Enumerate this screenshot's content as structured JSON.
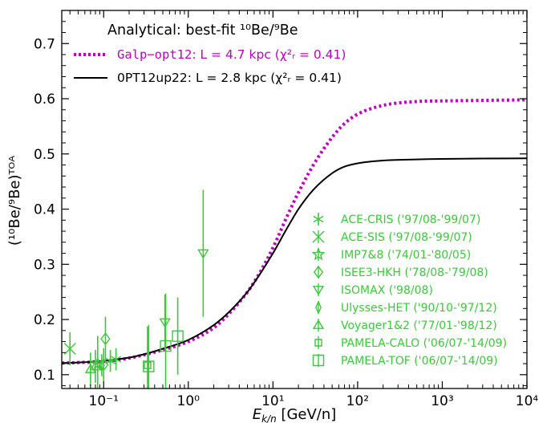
{
  "chart_data": {
    "type": "line",
    "xlabel_main": "E",
    "xlabel_sub": "k/n",
    "xlabel_unit": " [GeV/n]",
    "ylabel": "(¹⁰Be/⁹Be)ᵀᴼᴬ",
    "xscale": "log",
    "xlim": [
      0.032,
      10000
    ],
    "ylim": [
      0.075,
      0.76
    ],
    "grid": false,
    "legend_placement": "top-left",
    "legend_title": "Analytical: best-fit ¹⁰Be/⁹Be",
    "x_tick_labels": [
      "10⁻¹",
      "10⁰",
      "10¹",
      "10²",
      "10³",
      "10⁴"
    ],
    "x_ticks": [
      0.1,
      1,
      10,
      100,
      1000,
      10000
    ],
    "y_ticks": [
      0.1,
      0.2,
      0.3,
      0.4,
      0.5,
      0.6,
      0.7
    ],
    "y_tick_labels": [
      "0.1",
      "0.2",
      "0.3",
      "0.4",
      "0.5",
      "0.6",
      "0.7"
    ],
    "colors": {
      "model1": "#c000c0",
      "model2": "#000000",
      "data": "#3cc83c"
    },
    "series": [
      {
        "name_code": "Galp−opt12",
        "name_rest": ": L = 4.7 kpc (χ²ᵣ = 0.41)",
        "style": "dotted",
        "color": "#c000c0",
        "x": [
          0.032,
          0.05,
          0.1,
          0.2,
          0.3,
          0.5,
          1,
          2,
          3,
          5,
          7,
          10,
          15,
          20,
          30,
          50,
          70,
          100,
          200,
          500,
          1000,
          10000
        ],
        "y": [
          0.121,
          0.122,
          0.124,
          0.13,
          0.136,
          0.145,
          0.16,
          0.185,
          0.21,
          0.25,
          0.285,
          0.33,
          0.39,
          0.43,
          0.48,
          0.53,
          0.555,
          0.572,
          0.588,
          0.595,
          0.596,
          0.598
        ]
      },
      {
        "name_code": "0PT12up22",
        "name_rest": ": L = 2.8 kpc (χ²ᵣ = 0.41)",
        "style": "solid",
        "color": "#000000",
        "x": [
          0.032,
          0.05,
          0.1,
          0.2,
          0.3,
          0.5,
          1,
          2,
          3,
          5,
          7,
          10,
          15,
          20,
          30,
          50,
          70,
          100,
          200,
          500,
          1000,
          10000
        ],
        "y": [
          0.121,
          0.122,
          0.125,
          0.131,
          0.137,
          0.147,
          0.163,
          0.19,
          0.213,
          0.25,
          0.282,
          0.32,
          0.368,
          0.4,
          0.435,
          0.465,
          0.477,
          0.483,
          0.488,
          0.49,
          0.491,
          0.492
        ]
      }
    ],
    "experiments": [
      {
        "label": "ACE-CRIS ('97/08-'99/07)",
        "marker": "asterisk",
        "points": [
          {
            "x": 0.12,
            "y": 0.125,
            "yerr": 0.02
          },
          {
            "x": 0.14,
            "y": 0.128,
            "yerr": 0.02
          }
        ]
      },
      {
        "label": "ACE-SIS ('97/08-'99/07)",
        "marker": "x",
        "points": [
          {
            "x": 0.04,
            "y": 0.147,
            "yerr": 0.03
          }
        ]
      },
      {
        "label": "IMP7&8 ('74/01-'80/05)",
        "marker": "star",
        "points": [
          {
            "x": 0.085,
            "y": 0.12,
            "yerr": 0.05
          }
        ]
      },
      {
        "label": "ISEE3-HKH ('78/08-'79/08)",
        "marker": "diamond",
        "points": [
          {
            "x": 0.105,
            "y": 0.165,
            "yerr": 0.04
          },
          {
            "x": 0.1,
            "y": 0.118,
            "yerr": 0.03
          }
        ]
      },
      {
        "label": "ISOMAX ('98/08)",
        "marker": "triangle-down",
        "points": [
          {
            "x": 0.53,
            "y": 0.195,
            "yerr": 0.05
          },
          {
            "x": 1.5,
            "y": 0.32,
            "yerr": 0.115
          }
        ]
      },
      {
        "label": "Ulysses-HET ('90/10-'97/12)",
        "marker": "thin-diamond",
        "points": [
          {
            "x": 0.095,
            "y": 0.117,
            "yerr": 0.02
          }
        ]
      },
      {
        "label": "Voyager1&2 ('77/01-'98/12)",
        "marker": "triangle-up",
        "points": [
          {
            "x": 0.07,
            "y": 0.11,
            "yerr": 0.03
          },
          {
            "x": 0.08,
            "y": 0.115,
            "yerr": 0.03
          }
        ]
      },
      {
        "label": "PAMELA-CALO ('06/07-'14/09)",
        "marker": "square-small",
        "points": [
          {
            "x": 0.33,
            "y": 0.117,
            "yerr": 0.07
          }
        ]
      },
      {
        "label": "PAMELA-TOF ('06/07-'14/09)",
        "marker": "square",
        "points": [
          {
            "x": 0.34,
            "y": 0.115,
            "yerr": 0.075
          },
          {
            "x": 0.54,
            "y": 0.152,
            "yerr": 0.095
          },
          {
            "x": 0.75,
            "y": 0.17,
            "yerr": 0.07
          }
        ]
      }
    ]
  }
}
